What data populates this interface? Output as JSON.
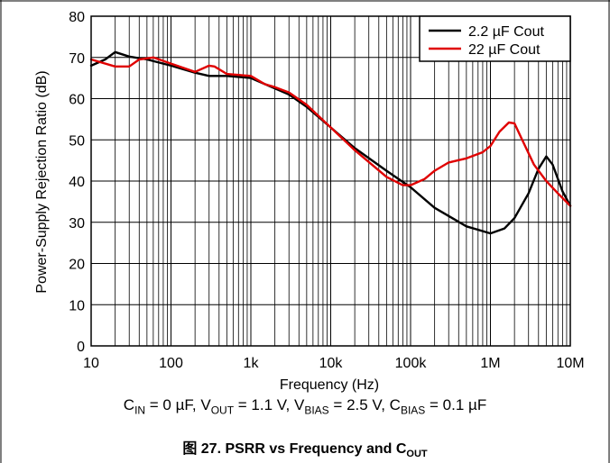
{
  "chart_data": {
    "type": "line",
    "xlabel": "Frequency (Hz)",
    "ylabel": "Power-Supply Rejection Ratio (dB)",
    "x_scale": "log",
    "xlim": [
      10,
      10000000
    ],
    "ylim": [
      0,
      80
    ],
    "x_ticks": [
      "10",
      "100",
      "1k",
      "10k",
      "100k",
      "1M",
      "10M"
    ],
    "y_ticks": [
      "0",
      "10",
      "20",
      "30",
      "40",
      "50",
      "60",
      "70",
      "80"
    ],
    "grid": true,
    "legend_position": "top-right",
    "series": [
      {
        "name": "2.2 µF Cout",
        "color": "#000000",
        "points": [
          [
            10,
            68
          ],
          [
            15,
            69.5
          ],
          [
            20,
            71.3
          ],
          [
            30,
            70.2
          ],
          [
            50,
            69.5
          ],
          [
            100,
            68
          ],
          [
            200,
            66.3
          ],
          [
            300,
            65.5
          ],
          [
            500,
            65.5
          ],
          [
            1000,
            65
          ],
          [
            2000,
            62.5
          ],
          [
            3000,
            61
          ],
          [
            5000,
            58
          ],
          [
            10000,
            53
          ],
          [
            20000,
            48
          ],
          [
            50000,
            42.5
          ],
          [
            100000,
            38.5
          ],
          [
            200000,
            33.5
          ],
          [
            500000,
            29
          ],
          [
            1000000,
            27.3
          ],
          [
            1500000,
            28.5
          ],
          [
            2000000,
            31
          ],
          [
            3000000,
            37
          ],
          [
            4000000,
            43
          ],
          [
            5000000,
            46
          ],
          [
            6000000,
            44
          ],
          [
            7000000,
            40.5
          ],
          [
            8000000,
            37.5
          ],
          [
            10000000,
            34
          ]
        ]
      },
      {
        "name": "22 µF Cout",
        "color": "#e00000",
        "points": [
          [
            10,
            69.5
          ],
          [
            20,
            67.8
          ],
          [
            30,
            67.8
          ],
          [
            40,
            69.5
          ],
          [
            60,
            70
          ],
          [
            100,
            68.5
          ],
          [
            200,
            66.5
          ],
          [
            300,
            68
          ],
          [
            350,
            67.8
          ],
          [
            500,
            66
          ],
          [
            1000,
            65.5
          ],
          [
            1500,
            63.5
          ],
          [
            2000,
            62.8
          ],
          [
            3000,
            61.5
          ],
          [
            5000,
            58.5
          ],
          [
            10000,
            53
          ],
          [
            20000,
            47.5
          ],
          [
            50000,
            41
          ],
          [
            80000,
            39
          ],
          [
            100000,
            39
          ],
          [
            150000,
            40.5
          ],
          [
            200000,
            42.5
          ],
          [
            300000,
            44.5
          ],
          [
            500000,
            45.5
          ],
          [
            800000,
            47
          ],
          [
            1000000,
            48.5
          ],
          [
            1300000,
            52
          ],
          [
            1700000,
            54.2
          ],
          [
            2000000,
            54
          ],
          [
            2500000,
            50
          ],
          [
            3500000,
            44
          ],
          [
            5000000,
            40
          ],
          [
            7000000,
            37
          ],
          [
            10000000,
            34
          ]
        ]
      }
    ]
  },
  "conditions": {
    "cin": "C",
    "cin_sub": "IN",
    "cin_val": " = 0 µF, V",
    "vout_sub": "OUT",
    "vout_val": " = 1.1 V, V",
    "vbias_sub": "BIAS",
    "vbias_val": " = 2.5 V, C",
    "cbias_sub": "BIAS",
    "cbias_val": " = 0.1 µF"
  },
  "caption": {
    "text": "图 27. PSRR vs Frequency and C",
    "sub": "OUT"
  }
}
